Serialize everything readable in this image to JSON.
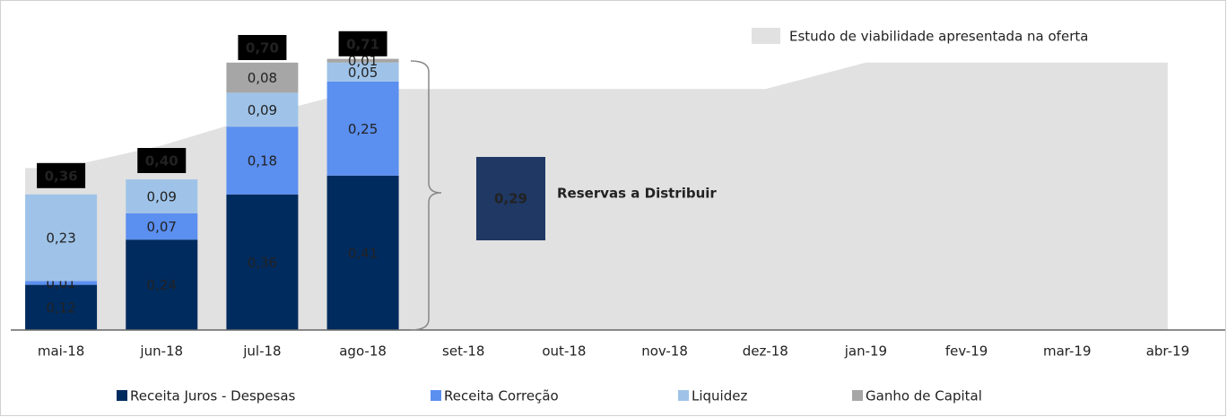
{
  "chart_data": {
    "type": "bar",
    "stacked": true,
    "categories": [
      "mai-18",
      "jun-18",
      "jul-18",
      "ago-18",
      "set-18",
      "out-18",
      "nov-18",
      "dez-18",
      "jan-19",
      "fev-19",
      "mar-19",
      "abr-19"
    ],
    "ylim": [
      0,
      0.8
    ],
    "series": [
      {
        "name": "Receita Juros - Despesas",
        "color": "#002b5e",
        "values": [
          0.12,
          0.24,
          0.36,
          0.41,
          null,
          null,
          null,
          null,
          null,
          null,
          null,
          null
        ],
        "value_labels": [
          "0,12",
          "0,24",
          "0,36",
          "0,41",
          null,
          null,
          null,
          null,
          null,
          null,
          null,
          null
        ]
      },
      {
        "name": "Receita Correção",
        "color": "#5b8ff0",
        "values": [
          0.01,
          0.07,
          0.18,
          0.25,
          null,
          null,
          null,
          null,
          null,
          null,
          null,
          null
        ],
        "value_labels": [
          "0,01",
          "0,07",
          "0,18",
          "0,25",
          null,
          null,
          null,
          null,
          null,
          null,
          null,
          null
        ]
      },
      {
        "name": "Liquidez",
        "color": "#9fc3e8",
        "values": [
          0.23,
          0.09,
          0.09,
          0.05,
          null,
          null,
          null,
          null,
          null,
          null,
          null,
          null
        ],
        "value_labels": [
          "0,23",
          "0,09",
          "0,09",
          "0,05",
          null,
          null,
          null,
          null,
          null,
          null,
          null,
          null
        ]
      },
      {
        "name": "Ganho de Capital",
        "color": "#a6a6a6",
        "values": [
          null,
          null,
          0.08,
          0.01,
          null,
          null,
          null,
          null,
          null,
          null,
          null,
          null
        ],
        "value_labels": [
          null,
          null,
          "0,08",
          "0,01",
          null,
          null,
          null,
          null,
          null,
          null,
          null,
          null
        ]
      }
    ],
    "totals": {
      "values": [
        0.36,
        0.4,
        0.7,
        0.71
      ],
      "value_labels": [
        "0,36",
        "0,40",
        "0,70",
        "0,71"
      ]
    },
    "area": {
      "name": "Estudo de viabilidade apresentada na oferta",
      "color": "#e1e1e1",
      "values": [
        0.43,
        0.49,
        0.57,
        0.64,
        0.64,
        0.64,
        0.64,
        0.64,
        0.71,
        0.71,
        0.71,
        0.71
      ]
    },
    "annotation": {
      "text": "Reservas a Distribuir",
      "value": 0.29,
      "value_label": "0,29",
      "color": "#1f3864"
    }
  }
}
